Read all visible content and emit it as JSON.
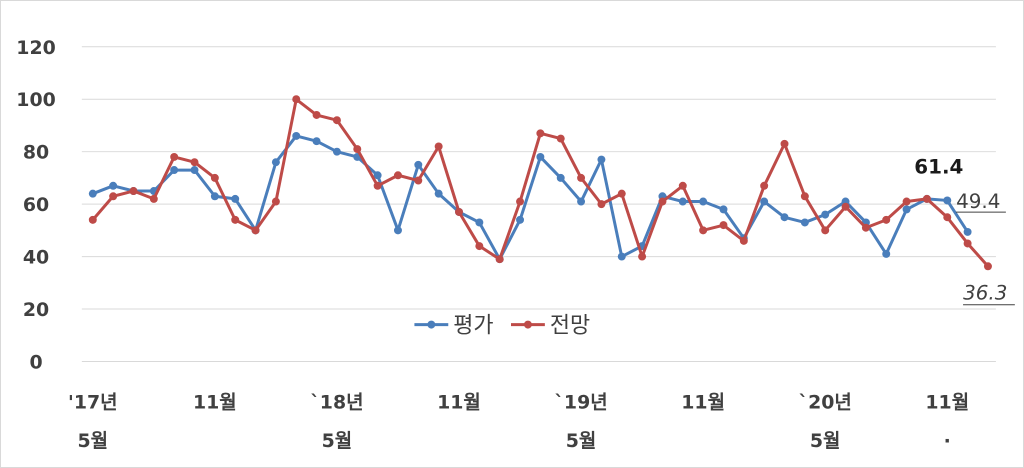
{
  "chart_data": {
    "type": "line",
    "ylim": [
      0,
      120
    ],
    "y_ticks": [
      "0",
      "20",
      "40",
      "60",
      "80",
      "100",
      "120"
    ],
    "grid": true,
    "legend_position": "bottom-center",
    "x_tick_labels": [
      {
        "index": 0,
        "line1": "'17년",
        "line2": "5월"
      },
      {
        "index": 6,
        "line1": "11월",
        "line2": ""
      },
      {
        "index": 12,
        "line1": "`18년",
        "line2": "5월"
      },
      {
        "index": 18,
        "line1": "11월",
        "line2": ""
      },
      {
        "index": 24,
        "line1": "`19년",
        "line2": "5월"
      },
      {
        "index": 30,
        "line1": "11월",
        "line2": ""
      },
      {
        "index": 36,
        "line1": "`20년",
        "line2": "5월"
      },
      {
        "index": 42,
        "line1": "11월",
        "line2": "·"
      }
    ],
    "series": [
      {
        "name": "평가",
        "color": "#4a7ebb",
        "values": [
          64,
          67,
          65,
          65,
          73,
          73,
          63,
          62,
          50,
          76,
          86,
          84,
          80,
          78,
          71,
          50,
          75,
          64,
          57,
          53,
          39,
          54,
          78,
          70,
          61,
          77,
          40,
          44,
          63,
          61,
          61,
          58,
          47,
          61,
          55,
          53,
          56,
          61,
          53,
          41,
          58,
          62,
          61.4,
          49.4
        ]
      },
      {
        "name": "전망",
        "color": "#be4b48",
        "values": [
          54,
          63,
          65,
          62,
          78,
          76,
          70,
          54,
          50,
          61,
          100,
          94,
          92,
          81,
          67,
          71,
          69,
          82,
          57,
          44,
          39,
          61,
          87,
          85,
          70,
          60,
          64,
          40,
          61,
          67,
          50,
          52,
          46,
          67,
          83,
          63,
          50,
          59,
          51,
          54,
          61,
          62,
          55,
          45,
          36.3
        ]
      }
    ],
    "annotations": [
      {
        "text": "61.4",
        "style": "bold"
      },
      {
        "text": "49.4",
        "style": "underline"
      },
      {
        "text": "36.3",
        "style": "italic-underline"
      }
    ]
  }
}
